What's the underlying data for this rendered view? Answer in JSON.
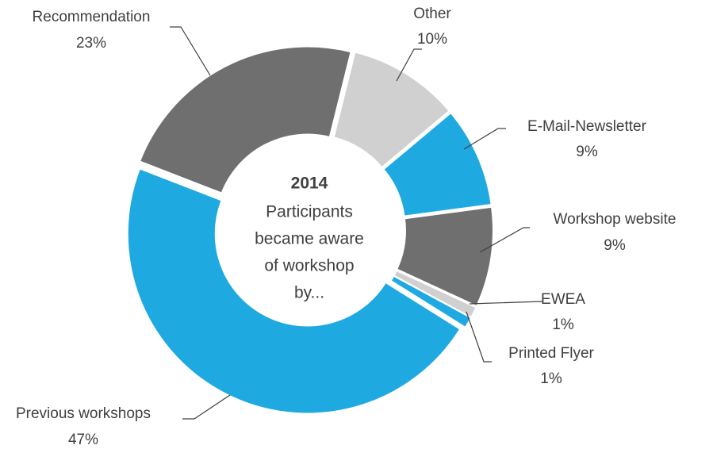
{
  "chart_data": {
    "type": "donut",
    "center_title": "2014",
    "center_text": [
      "Participants",
      "became aware",
      "of workshop",
      "by..."
    ],
    "categories": [
      "Other",
      "E-Mail-Newsletter",
      "Workshop website",
      "EWEA",
      "Printed Flyer",
      "Previous workshops",
      "Recommendation"
    ],
    "values": [
      10,
      9,
      9,
      1,
      1,
      47,
      23
    ],
    "value_labels": [
      "10%",
      "9%",
      "9%",
      "1%",
      "1%",
      "47%",
      "23%"
    ],
    "colors": [
      "#d0d0d0",
      "#1fa9e1",
      "#6f6f6f",
      "#d0d0d0",
      "#1fa9e1",
      "#1fa9e1",
      "#6f6f6f"
    ]
  }
}
